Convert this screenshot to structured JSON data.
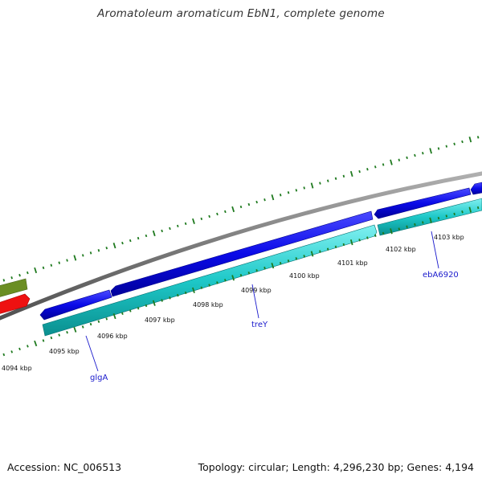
{
  "title": "Aromatoleum aromaticum EbN1, complete genome",
  "accession": "Accession: NC_006513",
  "summary": "Topology: circular; Length: 4,296,230 bp; Genes: 4,194",
  "colors": {
    "backbone": "#7a7a7a",
    "ticks": "#1f7a1f",
    "cds_forward": "#0a0ae8",
    "cds_reverse": "#1ec8c8",
    "gene_olive": "#6b8e23",
    "gene_red": "#ee1111",
    "label": "#1a1acc"
  },
  "scale_labels": [
    "4094 kbp",
    "4095 kbp",
    "4096 kbp",
    "4097 kbp",
    "4098 kbp",
    "4099 kbp",
    "4100 kbp",
    "4101 kbp",
    "4102 kbp",
    "4103 kbp"
  ],
  "gene_labels": [
    "glgA",
    "treY",
    "ebA6920"
  ]
}
